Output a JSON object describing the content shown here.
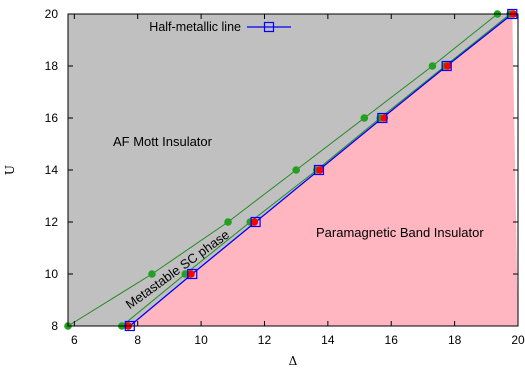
{
  "chart_data": {
    "type": "line",
    "xlabel": "Δ",
    "ylabel": "U",
    "xlim": [
      5.8,
      20
    ],
    "ylim": [
      8,
      20
    ],
    "xticks": [
      "6",
      "8",
      "10",
      "12",
      "14",
      "16",
      "18",
      "20"
    ],
    "yticks": [
      "8",
      "10",
      "12",
      "14",
      "16",
      "18",
      "20"
    ],
    "grid": false,
    "legend_position": "top-left",
    "colors": {
      "af_region": "#c0c0c0",
      "band_region": "#ffb6c1",
      "halfmetal_line": "#0000ff",
      "green_lines": "#228b22",
      "green_points": "#22a022",
      "red_points": "#ff0000"
    },
    "regions": {
      "af_mott": "AF Mott Insulator",
      "band": "Paramagnetic Band Insulator",
      "metastable": "Metastable SC phase"
    },
    "series": [
      {
        "name": "Half-metallic line",
        "marker": "square",
        "x": [
          7.75,
          9.72,
          11.72,
          13.72,
          15.72,
          17.75,
          19.82
        ],
        "y": [
          8,
          10,
          12,
          14,
          16,
          18,
          20
        ]
      },
      {
        "marker": "circle",
        "x": [
          5.8,
          8.45,
          10.85,
          13.0,
          15.15,
          17.3,
          19.35
        ],
        "y": [
          8,
          10,
          12,
          14,
          16,
          18,
          20
        ]
      },
      {
        "marker": "circle",
        "x": [
          7.5,
          9.5,
          11.55,
          13.65,
          15.65,
          17.7,
          19.75
        ],
        "y": [
          8,
          10,
          12,
          14,
          16,
          18,
          20
        ]
      },
      {
        "marker": "circle",
        "x": [
          7.7,
          9.68,
          11.68,
          13.75,
          15.78,
          17.78,
          19.85
        ],
        "y": [
          8,
          10,
          12,
          14,
          16,
          18,
          20
        ]
      }
    ]
  }
}
